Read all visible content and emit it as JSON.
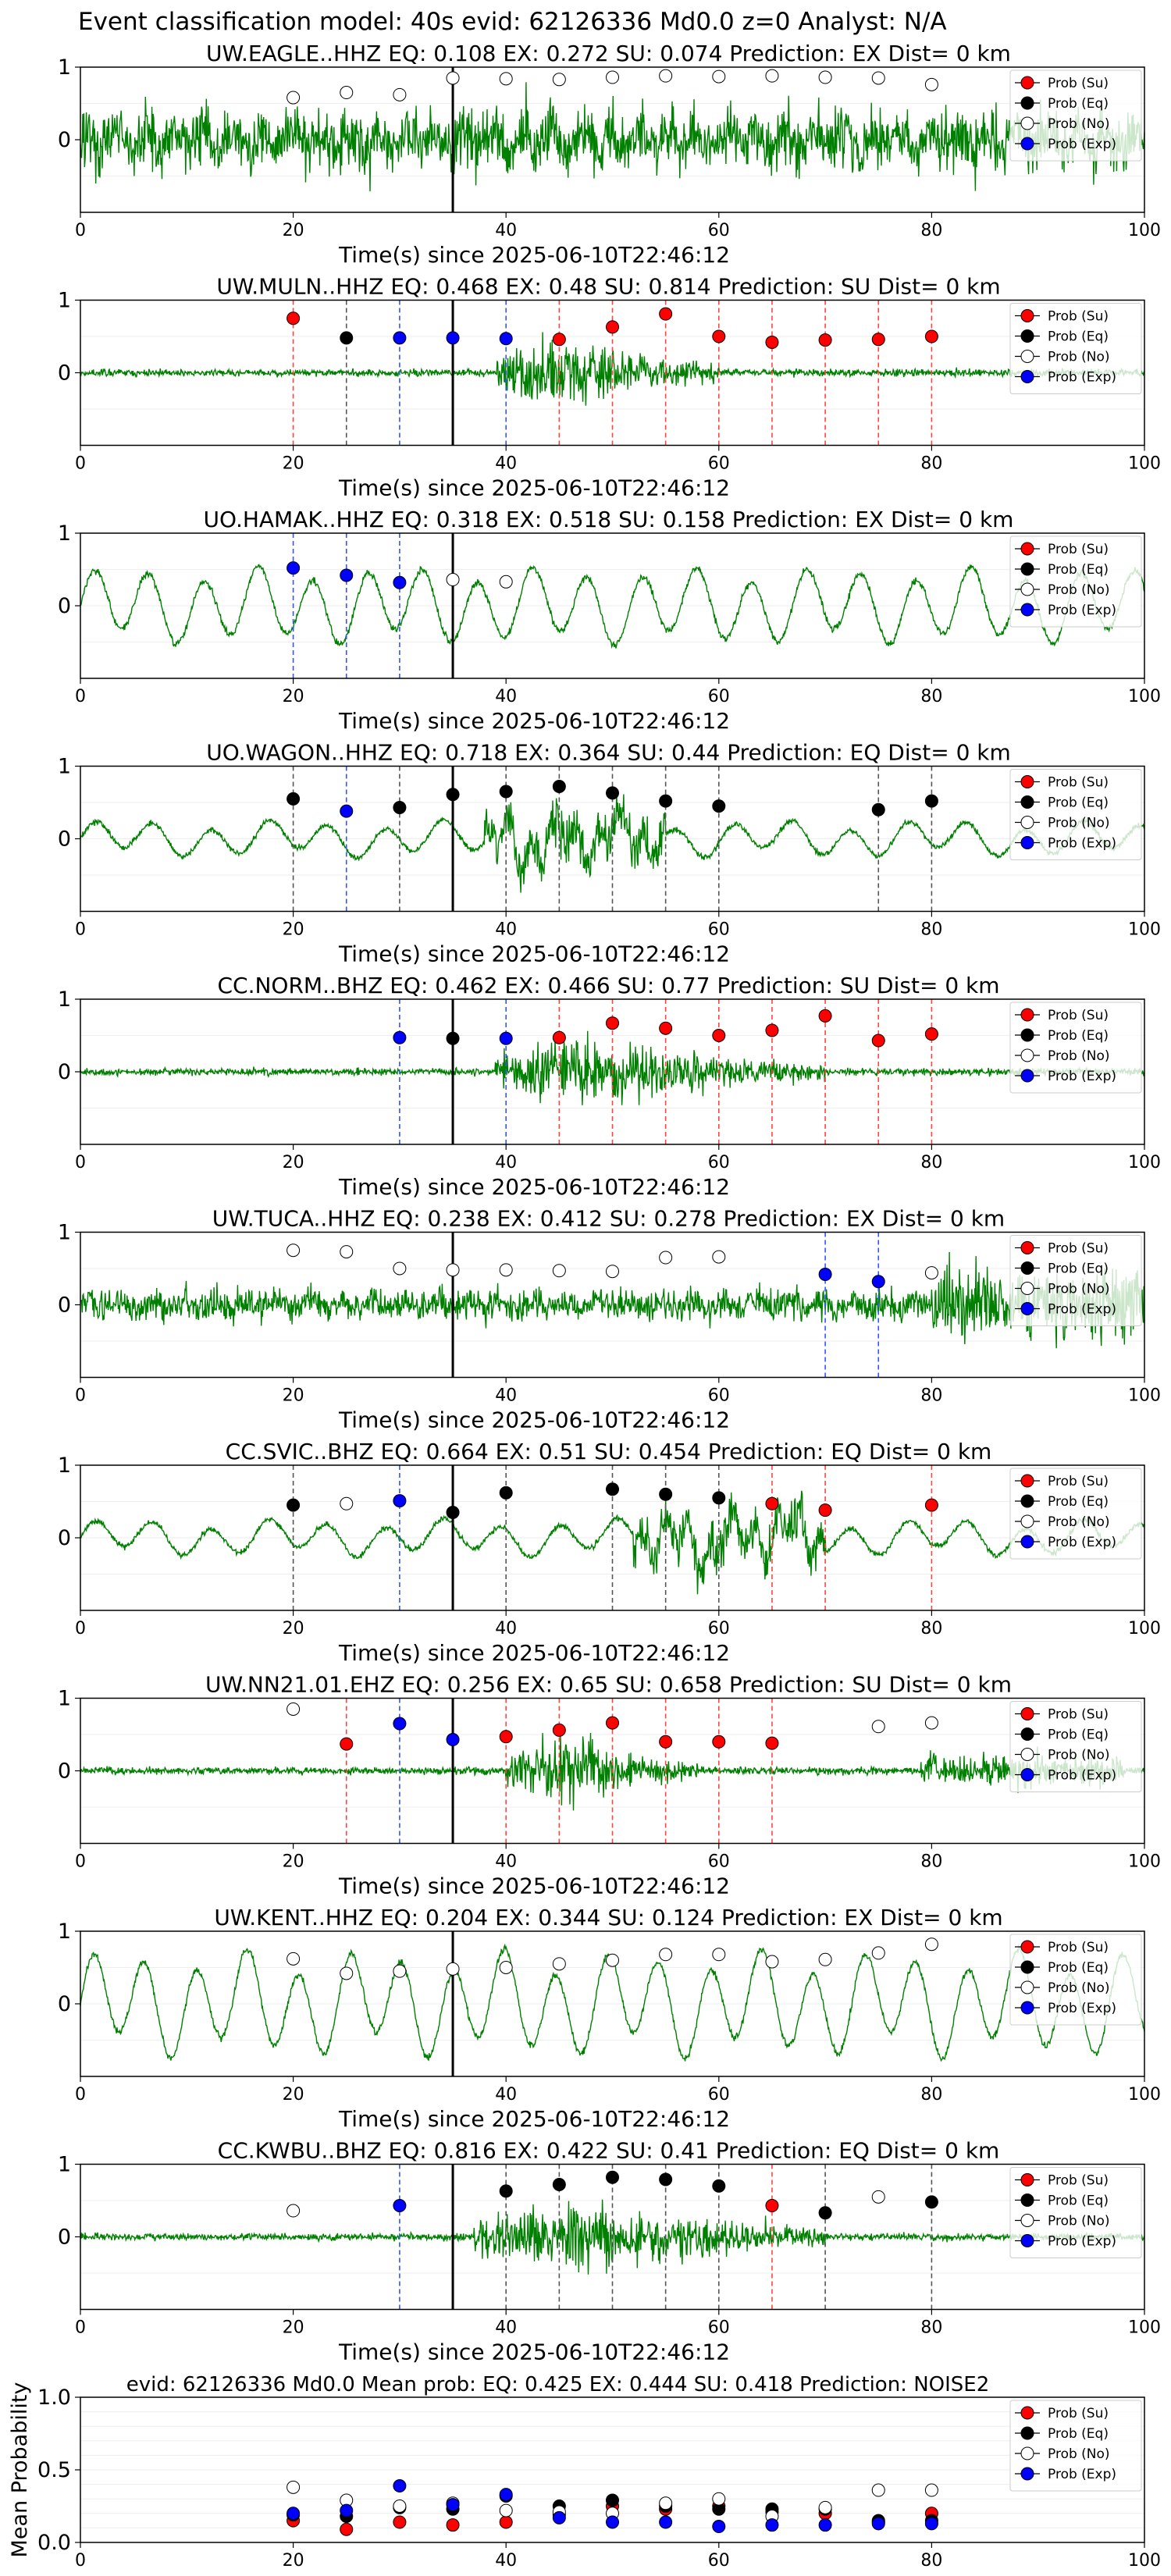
{
  "suptitle": "Event classification model: 40s evid: 62126336 Md0.0 z=0 Analyst: N/A",
  "colors": {
    "waveform": "#008000",
    "su": "#ff0000",
    "eq": "#000000",
    "no": "#ffffff",
    "exp": "#0000ff",
    "vline_eq": "#555555",
    "vline_su": "#ff4444",
    "vline_exp": "#3355ff"
  },
  "legend_labels": [
    "Prob (Su)",
    "Prob (Eq)",
    "Prob (No)",
    "Prob (Exp)"
  ],
  "chart_data": [
    {
      "type": "line",
      "station": "UW.EAGLE..HHZ",
      "title": "UW.EAGLE..HHZ   EQ: 0.108  EX: 0.272  SU: 0.074   Prediction: EX    Dist= 0 km",
      "xlabel": "Time(s) since 2025-06-10T22:46:12",
      "xlim": [
        0,
        100
      ],
      "ylim": [
        -1,
        1
      ],
      "xticks": [
        "0",
        "20",
        "40",
        "60",
        "80",
        "100"
      ],
      "yticks": [
        "0",
        "1"
      ],
      "pick_time": 35,
      "waveform_style": "broadband-high",
      "points": [
        {
          "t": 20,
          "p": 0.58,
          "cls": "no"
        },
        {
          "t": 25,
          "p": 0.65,
          "cls": "no"
        },
        {
          "t": 30,
          "p": 0.62,
          "cls": "no"
        },
        {
          "t": 35,
          "p": 0.85,
          "cls": "no"
        },
        {
          "t": 40,
          "p": 0.84,
          "cls": "no"
        },
        {
          "t": 45,
          "p": 0.83,
          "cls": "no"
        },
        {
          "t": 50,
          "p": 0.86,
          "cls": "no"
        },
        {
          "t": 55,
          "p": 0.88,
          "cls": "no"
        },
        {
          "t": 60,
          "p": 0.87,
          "cls": "no"
        },
        {
          "t": 65,
          "p": 0.88,
          "cls": "no"
        },
        {
          "t": 70,
          "p": 0.86,
          "cls": "no"
        },
        {
          "t": 75,
          "p": 0.85,
          "cls": "no"
        },
        {
          "t": 80,
          "p": 0.76,
          "cls": "no"
        }
      ]
    },
    {
      "type": "line",
      "station": "UW.MULN..HHZ",
      "title": "UW.MULN..HHZ   EQ: 0.468  EX: 0.48  SU: 0.814   Prediction: SU    Dist= 0 km",
      "xlabel": "Time(s) since 2025-06-10T22:46:12",
      "xlim": [
        0,
        100
      ],
      "ylim": [
        -1,
        1
      ],
      "xticks": [
        "0",
        "20",
        "40",
        "60",
        "80",
        "100"
      ],
      "yticks": [
        "0",
        "1"
      ],
      "pick_time": 35,
      "waveform_style": "burst",
      "burst": [
        39,
        60
      ],
      "points": [
        {
          "t": 20,
          "p": 0.75,
          "cls": "su"
        },
        {
          "t": 25,
          "p": 0.48,
          "cls": "eq"
        },
        {
          "t": 30,
          "p": 0.48,
          "cls": "exp"
        },
        {
          "t": 35,
          "p": 0.48,
          "cls": "exp"
        },
        {
          "t": 40,
          "p": 0.47,
          "cls": "exp"
        },
        {
          "t": 45,
          "p": 0.46,
          "cls": "su"
        },
        {
          "t": 50,
          "p": 0.63,
          "cls": "su"
        },
        {
          "t": 55,
          "p": 0.81,
          "cls": "su"
        },
        {
          "t": 60,
          "p": 0.5,
          "cls": "su"
        },
        {
          "t": 65,
          "p": 0.42,
          "cls": "su"
        },
        {
          "t": 70,
          "p": 0.45,
          "cls": "su"
        },
        {
          "t": 75,
          "p": 0.46,
          "cls": "su"
        },
        {
          "t": 80,
          "p": 0.5,
          "cls": "su"
        }
      ]
    },
    {
      "type": "line",
      "station": "UO.HAMAK..HHZ",
      "title": "UO.HAMAK..HHZ   EQ: 0.318  EX: 0.518  SU: 0.158   Prediction: EX    Dist= 0 km",
      "xlabel": "Time(s) since 2025-06-10T22:46:12",
      "xlim": [
        0,
        100
      ],
      "ylim": [
        -1,
        1
      ],
      "xticks": [
        "0",
        "20",
        "40",
        "60",
        "80",
        "100"
      ],
      "yticks": [
        "0",
        "1"
      ],
      "pick_time": 35,
      "waveform_style": "microseism",
      "points": [
        {
          "t": 20,
          "p": 0.52,
          "cls": "exp"
        },
        {
          "t": 25,
          "p": 0.42,
          "cls": "exp"
        },
        {
          "t": 30,
          "p": 0.32,
          "cls": "exp"
        },
        {
          "t": 35,
          "p": 0.36,
          "cls": "no"
        },
        {
          "t": 40,
          "p": 0.33,
          "cls": "no"
        }
      ]
    },
    {
      "type": "line",
      "station": "UO.WAGON..HHZ",
      "title": "UO.WAGON..HHZ   EQ: 0.718  EX: 0.364  SU: 0.44   Prediction: EQ    Dist= 0 km",
      "xlabel": "Time(s) since 2025-06-10T22:46:12",
      "xlim": [
        0,
        100
      ],
      "ylim": [
        -1,
        1
      ],
      "xticks": [
        "0",
        "20",
        "40",
        "60",
        "80",
        "100"
      ],
      "yticks": [
        "0",
        "1"
      ],
      "pick_time": 35,
      "waveform_style": "microseism-burst",
      "burst": [
        38,
        55
      ],
      "points": [
        {
          "t": 20,
          "p": 0.55,
          "cls": "eq"
        },
        {
          "t": 25,
          "p": 0.38,
          "cls": "exp"
        },
        {
          "t": 30,
          "p": 0.43,
          "cls": "eq"
        },
        {
          "t": 35,
          "p": 0.61,
          "cls": "eq"
        },
        {
          "t": 40,
          "p": 0.65,
          "cls": "eq"
        },
        {
          "t": 45,
          "p": 0.72,
          "cls": "eq"
        },
        {
          "t": 50,
          "p": 0.63,
          "cls": "eq"
        },
        {
          "t": 55,
          "p": 0.52,
          "cls": "eq"
        },
        {
          "t": 60,
          "p": 0.45,
          "cls": "eq"
        },
        {
          "t": 75,
          "p": 0.4,
          "cls": "eq"
        },
        {
          "t": 80,
          "p": 0.52,
          "cls": "eq"
        }
      ]
    },
    {
      "type": "line",
      "station": "CC.NORM..BHZ",
      "title": "CC.NORM..BHZ   EQ: 0.462  EX: 0.466  SU: 0.77   Prediction: SU    Dist= 0 km",
      "xlabel": "Time(s) since 2025-06-10T22:46:12",
      "xlim": [
        0,
        100
      ],
      "ylim": [
        -1,
        1
      ],
      "xticks": [
        "0",
        "20",
        "40",
        "60",
        "80",
        "100"
      ],
      "yticks": [
        "0",
        "1"
      ],
      "pick_time": 35,
      "waveform_style": "burst",
      "burst": [
        39,
        70
      ],
      "points": [
        {
          "t": 30,
          "p": 0.47,
          "cls": "exp"
        },
        {
          "t": 35,
          "p": 0.46,
          "cls": "eq"
        },
        {
          "t": 40,
          "p": 0.46,
          "cls": "exp"
        },
        {
          "t": 45,
          "p": 0.47,
          "cls": "su"
        },
        {
          "t": 50,
          "p": 0.67,
          "cls": "su"
        },
        {
          "t": 55,
          "p": 0.6,
          "cls": "su"
        },
        {
          "t": 60,
          "p": 0.5,
          "cls": "su"
        },
        {
          "t": 65,
          "p": 0.57,
          "cls": "su"
        },
        {
          "t": 70,
          "p": 0.77,
          "cls": "su"
        },
        {
          "t": 75,
          "p": 0.43,
          "cls": "su"
        },
        {
          "t": 80,
          "p": 0.52,
          "cls": "su"
        }
      ]
    },
    {
      "type": "line",
      "station": "UW.TUCA..HHZ",
      "title": "UW.TUCA..HHZ   EQ: 0.238  EX: 0.412  SU: 0.278   Prediction: EX    Dist= 0 km",
      "xlabel": "Time(s) since 2025-06-10T22:46:12",
      "xlim": [
        0,
        100
      ],
      "ylim": [
        -1,
        1
      ],
      "xticks": [
        "0",
        "20",
        "40",
        "60",
        "80",
        "100"
      ],
      "yticks": [
        "0",
        "1"
      ],
      "pick_time": 35,
      "waveform_style": "noisy-late",
      "burst": [
        80,
        100
      ],
      "points": [
        {
          "t": 20,
          "p": 0.75,
          "cls": "no"
        },
        {
          "t": 25,
          "p": 0.73,
          "cls": "no"
        },
        {
          "t": 30,
          "p": 0.5,
          "cls": "no"
        },
        {
          "t": 35,
          "p": 0.48,
          "cls": "no"
        },
        {
          "t": 40,
          "p": 0.48,
          "cls": "no"
        },
        {
          "t": 45,
          "p": 0.47,
          "cls": "no"
        },
        {
          "t": 50,
          "p": 0.46,
          "cls": "no"
        },
        {
          "t": 55,
          "p": 0.65,
          "cls": "no"
        },
        {
          "t": 60,
          "p": 0.66,
          "cls": "no"
        },
        {
          "t": 70,
          "p": 0.42,
          "cls": "exp"
        },
        {
          "t": 75,
          "p": 0.32,
          "cls": "exp"
        },
        {
          "t": 80,
          "p": 0.44,
          "cls": "no"
        }
      ]
    },
    {
      "type": "line",
      "station": "CC.SVIC..BHZ",
      "title": "CC.SVIC..BHZ   EQ: 0.664  EX: 0.51  SU: 0.454   Prediction: EQ    Dist= 0 km",
      "xlabel": "Time(s) since 2025-06-10T22:46:12",
      "xlim": [
        0,
        100
      ],
      "ylim": [
        -1,
        1
      ],
      "xticks": [
        "0",
        "20",
        "40",
        "60",
        "80",
        "100"
      ],
      "yticks": [
        "0",
        "1"
      ],
      "pick_time": 35,
      "waveform_style": "microseism-burst",
      "burst": [
        52,
        70
      ],
      "points": [
        {
          "t": 20,
          "p": 0.45,
          "cls": "eq"
        },
        {
          "t": 25,
          "p": 0.47,
          "cls": "no"
        },
        {
          "t": 30,
          "p": 0.51,
          "cls": "exp"
        },
        {
          "t": 35,
          "p": 0.35,
          "cls": "eq"
        },
        {
          "t": 40,
          "p": 0.62,
          "cls": "eq"
        },
        {
          "t": 50,
          "p": 0.67,
          "cls": "eq"
        },
        {
          "t": 55,
          "p": 0.6,
          "cls": "eq"
        },
        {
          "t": 60,
          "p": 0.55,
          "cls": "eq"
        },
        {
          "t": 65,
          "p": 0.47,
          "cls": "su"
        },
        {
          "t": 70,
          "p": 0.38,
          "cls": "su"
        },
        {
          "t": 80,
          "p": 0.45,
          "cls": "su"
        }
      ]
    },
    {
      "type": "line",
      "station": "UW.NN21.01.EHZ",
      "title": "UW.NN21.01.EHZ   EQ: 0.256  EX: 0.65  SU: 0.658   Prediction: SU    Dist= 0 km",
      "xlabel": "Time(s) since 2025-06-10T22:46:12",
      "xlim": [
        0,
        100
      ],
      "ylim": [
        -1,
        1
      ],
      "xticks": [
        "0",
        "20",
        "40",
        "60",
        "80",
        "100"
      ],
      "yticks": [
        "0",
        "1"
      ],
      "pick_time": 35,
      "waveform_style": "burst",
      "burst": [
        40,
        58
      ],
      "burst2": [
        79,
        98
      ],
      "points": [
        {
          "t": 20,
          "p": 0.85,
          "cls": "no"
        },
        {
          "t": 25,
          "p": 0.37,
          "cls": "su"
        },
        {
          "t": 30,
          "p": 0.65,
          "cls": "exp"
        },
        {
          "t": 35,
          "p": 0.43,
          "cls": "exp"
        },
        {
          "t": 40,
          "p": 0.47,
          "cls": "su"
        },
        {
          "t": 45,
          "p": 0.56,
          "cls": "su"
        },
        {
          "t": 50,
          "p": 0.66,
          "cls": "su"
        },
        {
          "t": 55,
          "p": 0.4,
          "cls": "su"
        },
        {
          "t": 60,
          "p": 0.4,
          "cls": "su"
        },
        {
          "t": 65,
          "p": 0.38,
          "cls": "su"
        },
        {
          "t": 75,
          "p": 0.61,
          "cls": "no"
        },
        {
          "t": 80,
          "p": 0.66,
          "cls": "no"
        }
      ]
    },
    {
      "type": "line",
      "station": "UW.KENT..HHZ",
      "title": "UW.KENT..HHZ   EQ: 0.204  EX: 0.344  SU: 0.124   Prediction: EX    Dist= 0 km",
      "xlabel": "Time(s) since 2025-06-10T22:46:12",
      "xlim": [
        0,
        100
      ],
      "ylim": [
        -1,
        1
      ],
      "xticks": [
        "0",
        "20",
        "40",
        "60",
        "80",
        "100"
      ],
      "yticks": [
        "0",
        "1"
      ],
      "pick_time": 35,
      "waveform_style": "microseism-strong",
      "points": [
        {
          "t": 20,
          "p": 0.62,
          "cls": "no"
        },
        {
          "t": 25,
          "p": 0.42,
          "cls": "no"
        },
        {
          "t": 30,
          "p": 0.45,
          "cls": "no"
        },
        {
          "t": 35,
          "p": 0.48,
          "cls": "no"
        },
        {
          "t": 40,
          "p": 0.5,
          "cls": "no"
        },
        {
          "t": 45,
          "p": 0.55,
          "cls": "no"
        },
        {
          "t": 50,
          "p": 0.6,
          "cls": "no"
        },
        {
          "t": 55,
          "p": 0.68,
          "cls": "no"
        },
        {
          "t": 60,
          "p": 0.68,
          "cls": "no"
        },
        {
          "t": 65,
          "p": 0.58,
          "cls": "no"
        },
        {
          "t": 70,
          "p": 0.61,
          "cls": "no"
        },
        {
          "t": 75,
          "p": 0.7,
          "cls": "no"
        },
        {
          "t": 80,
          "p": 0.82,
          "cls": "no"
        }
      ]
    },
    {
      "type": "line",
      "station": "CC.KWBU..BHZ",
      "title": "CC.KWBU..BHZ   EQ: 0.816  EX: 0.422  SU: 0.41   Prediction: EQ    Dist= 0 km",
      "xlabel": "Time(s) since 2025-06-10T22:46:12",
      "xlim": [
        0,
        100
      ],
      "ylim": [
        -1,
        1
      ],
      "xticks": [
        "0",
        "20",
        "40",
        "60",
        "80",
        "100"
      ],
      "yticks": [
        "0",
        "1"
      ],
      "pick_time": 35,
      "waveform_style": "burst",
      "burst": [
        37,
        70
      ],
      "points": [
        {
          "t": 20,
          "p": 0.36,
          "cls": "no"
        },
        {
          "t": 30,
          "p": 0.43,
          "cls": "exp"
        },
        {
          "t": 40,
          "p": 0.63,
          "cls": "eq"
        },
        {
          "t": 45,
          "p": 0.72,
          "cls": "eq"
        },
        {
          "t": 50,
          "p": 0.82,
          "cls": "eq"
        },
        {
          "t": 55,
          "p": 0.79,
          "cls": "eq"
        },
        {
          "t": 60,
          "p": 0.7,
          "cls": "eq"
        },
        {
          "t": 65,
          "p": 0.43,
          "cls": "su"
        },
        {
          "t": 70,
          "p": 0.33,
          "cls": "eq"
        },
        {
          "t": 75,
          "p": 0.55,
          "cls": "no"
        },
        {
          "t": 80,
          "p": 0.48,
          "cls": "eq"
        }
      ]
    },
    {
      "type": "scatter",
      "title": "evid: 62126336  Md0.0   Mean prob:   EQ: 0.425  EX: 0.444  SU: 0.418   Prediction: NOISE2",
      "ylabel": "Mean Probability",
      "xlim": [
        0,
        100
      ],
      "ylim": [
        0,
        1
      ],
      "xticks": [
        "0",
        "20",
        "40",
        "60",
        "80",
        "100"
      ],
      "yticks": [
        "0.0",
        "0.5",
        "1.0"
      ],
      "x": [
        20,
        25,
        30,
        35,
        40,
        45,
        50,
        55,
        60,
        65,
        70,
        75,
        80
      ],
      "series": [
        {
          "cls": "su",
          "name": "Prob (Su)",
          "values": [
            0.15,
            0.09,
            0.14,
            0.12,
            0.14,
            0.19,
            0.25,
            0.23,
            0.25,
            0.21,
            0.2,
            0.14,
            0.2
          ]
        },
        {
          "cls": "eq",
          "name": "Prob (Eq)",
          "values": [
            0.19,
            0.18,
            0.24,
            0.23,
            0.32,
            0.25,
            0.29,
            0.25,
            0.23,
            0.23,
            0.23,
            0.15,
            0.15
          ]
        },
        {
          "cls": "no",
          "name": "Prob (No)",
          "values": [
            0.38,
            0.29,
            0.25,
            0.27,
            0.22,
            0.21,
            0.2,
            0.27,
            0.3,
            0.18,
            0.24,
            0.36,
            0.36
          ]
        },
        {
          "cls": "exp",
          "name": "Prob (Exp)",
          "values": [
            0.2,
            0.22,
            0.39,
            0.26,
            0.33,
            0.17,
            0.14,
            0.14,
            0.11,
            0.12,
            0.12,
            0.13,
            0.13
          ]
        }
      ]
    }
  ]
}
